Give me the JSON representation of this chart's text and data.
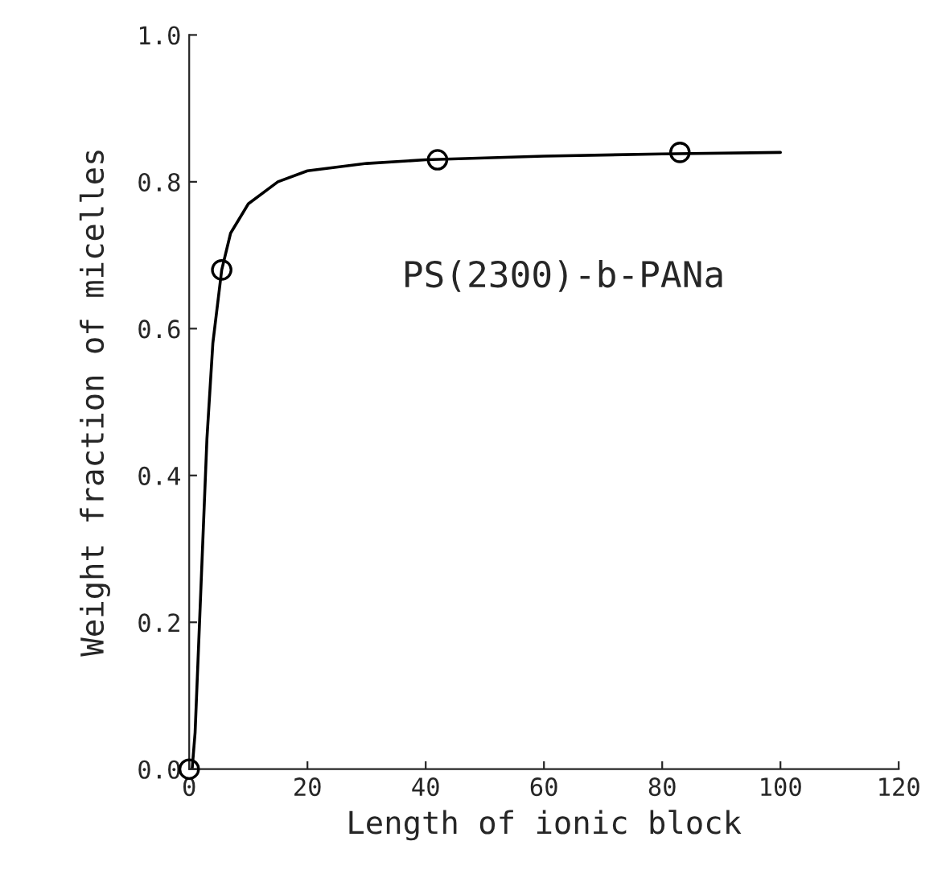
{
  "chart_data": {
    "type": "scatter",
    "xlabel": "Length of ionic block",
    "ylabel": "Weight fraction of micelles",
    "annotations": [
      "PS(2300)-b-PANa"
    ],
    "series": [
      {
        "color": "#000000",
        "marker": "circle",
        "x": [
          0,
          5.5,
          42,
          83
        ],
        "values": [
          0,
          0.68,
          0.83,
          0.84
        ]
      },
      {
        "type": "line",
        "color": "#000000",
        "marker": "none",
        "x": [
          0.5,
          1,
          1.5,
          2,
          3,
          4,
          5.5,
          7,
          10,
          15,
          20,
          30,
          40,
          60,
          80,
          100
        ],
        "values": [
          0,
          0.05,
          0.15,
          0.25,
          0.45,
          0.58,
          0.68,
          0.73,
          0.77,
          0.8,
          0.815,
          0.825,
          0.83,
          0.835,
          0.838,
          0.84
        ]
      }
    ],
    "xlim": [
      0,
      120
    ],
    "ylim": [
      0,
      1
    ],
    "xticks": [
      0,
      20,
      40,
      60,
      80,
      100,
      120
    ],
    "yticks": [
      {
        "value": 0,
        "label": "0.0"
      },
      {
        "value": 0.2,
        "label": "0.2"
      },
      {
        "value": 0.4,
        "label": "0.4"
      },
      {
        "value": 0.6,
        "label": "0.6"
      },
      {
        "value": 0.8,
        "label": "0.8"
      },
      {
        "value": 1,
        "label": "1.0"
      }
    ],
    "grid": false,
    "legend": false
  }
}
